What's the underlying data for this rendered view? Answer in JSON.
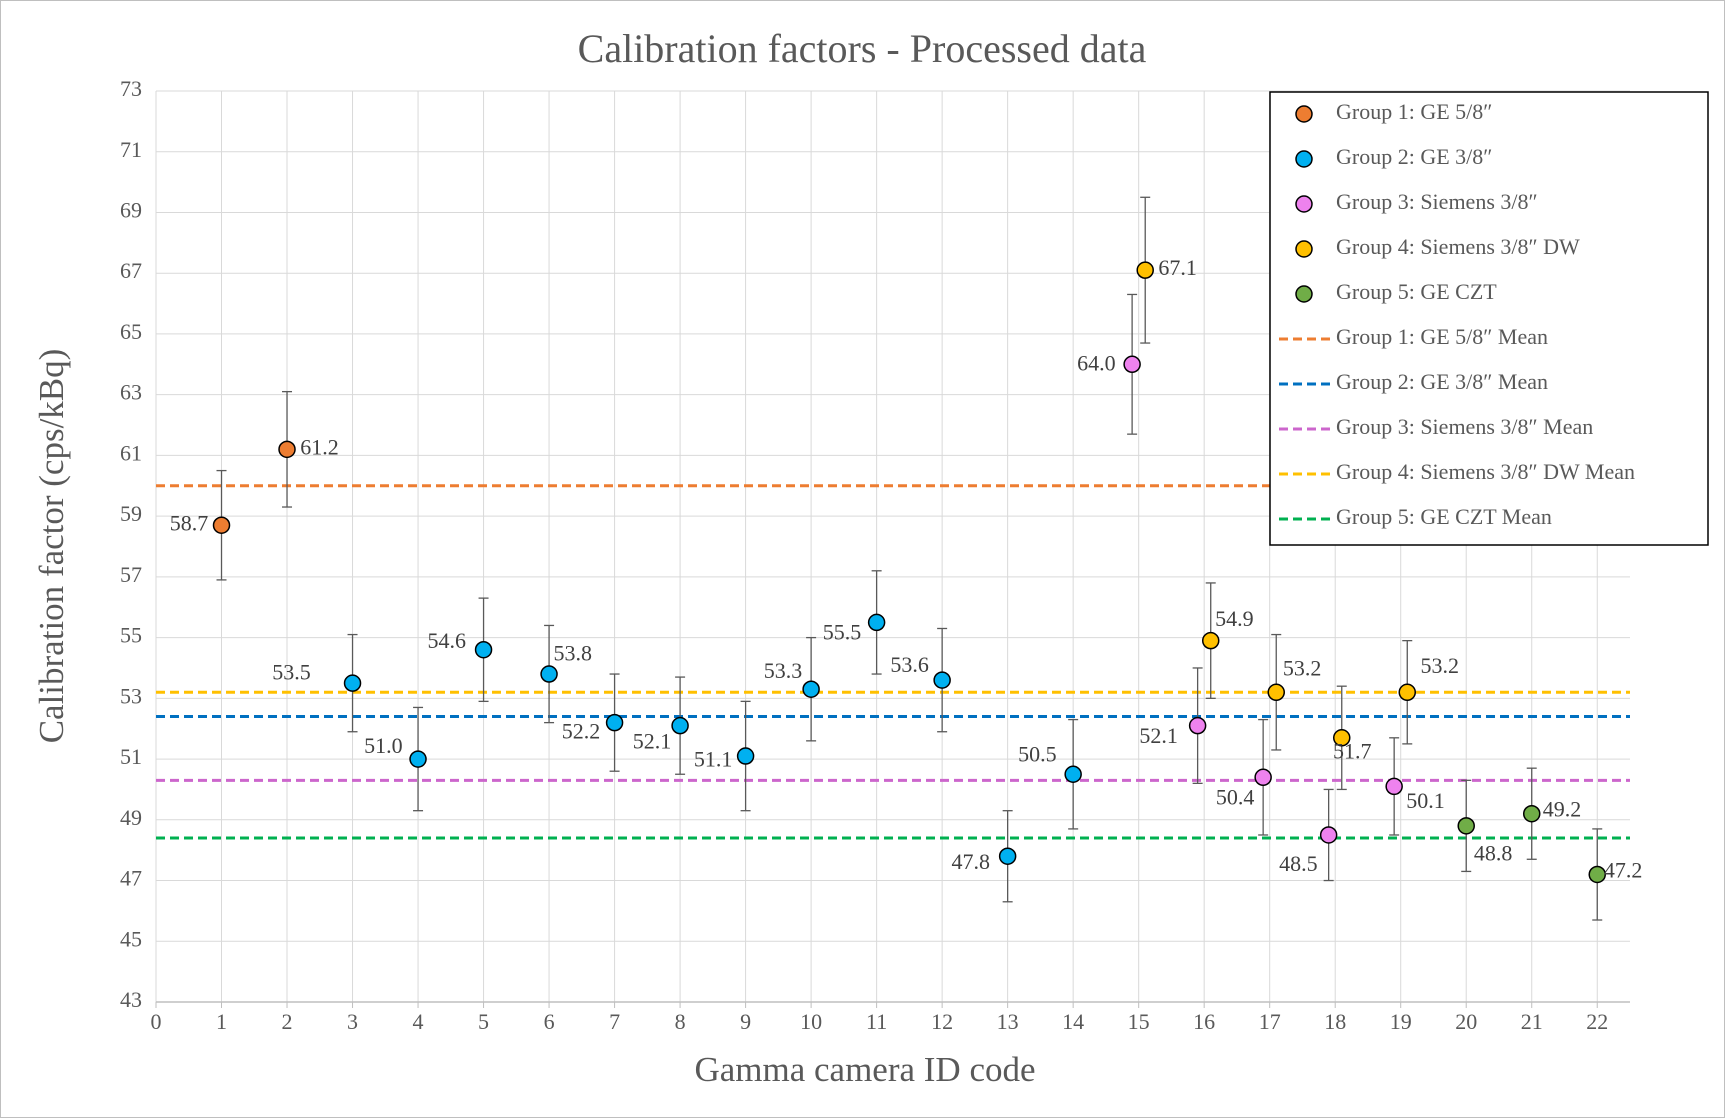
{
  "chart_data": {
    "type": "scatter",
    "title": "Calibration factors - Processed data",
    "x_label": "Gamma camera ID code",
    "y_label": "Calibration factor (cps/kBq)",
    "xlim": [
      0,
      22.5
    ],
    "xticks": [
      0,
      1,
      2,
      3,
      4,
      5,
      6,
      7,
      8,
      9,
      10,
      11,
      12,
      13,
      14,
      15,
      16,
      17,
      18,
      19,
      20,
      21,
      22
    ],
    "ylim": [
      43,
      73
    ],
    "yticks": [
      43,
      45,
      47,
      49,
      51,
      53,
      55,
      57,
      59,
      61,
      63,
      65,
      67,
      69,
      71,
      73
    ],
    "grid": true,
    "legend": "top-right",
    "series": [
      {
        "name": "Group 1: GE 5/8″",
        "color": "#ED7D31",
        "x": [
          1,
          2
        ],
        "values": [
          58.7,
          61.2
        ],
        "errors": [
          1.8,
          1.9
        ]
      },
      {
        "name": "Group 2: GE 3/8″",
        "color": "#00B0F0",
        "x": [
          3,
          4,
          5,
          6,
          7,
          8,
          9,
          10,
          11,
          12,
          13,
          14
        ],
        "values": [
          53.5,
          51.0,
          54.6,
          53.8,
          52.2,
          52.1,
          51.1,
          53.3,
          55.5,
          53.6,
          47.8,
          50.5
        ],
        "value_labels": [
          "53.5",
          "51.0",
          "54.6",
          "53.8",
          "52.2",
          "52.1",
          "51.1",
          "53.3",
          "55.5",
          "53.6",
          "47.8",
          "50.5"
        ],
        "errors": [
          1.6,
          1.7,
          1.7,
          1.6,
          1.6,
          1.6,
          1.8,
          1.7,
          1.7,
          1.7,
          1.5,
          1.8
        ]
      },
      {
        "name": "Group 3: Siemens 3/8″",
        "color": "#EE82EE",
        "x": [
          14.9,
          15.9,
          16.9,
          17.9,
          18.9
        ],
        "values": [
          64.0,
          52.1,
          50.4,
          48.5,
          50.1
        ],
        "value_labels": [
          "64.0",
          "52.1",
          "50.4",
          "48.5",
          "50.1"
        ],
        "errors": [
          2.3,
          1.9,
          1.9,
          1.5,
          1.6
        ]
      },
      {
        "name": "Group 4: Siemens 3/8″ DW",
        "color": "#FFC000",
        "x": [
          15.1,
          16.1,
          17.1,
          18.1,
          19.1
        ],
        "values": [
          67.1,
          54.9,
          53.2,
          51.7,
          53.2
        ],
        "errors": [
          2.4,
          1.9,
          1.9,
          1.7,
          1.7
        ]
      },
      {
        "name": "Group 5: GE CZT",
        "color": "#70AD47",
        "x": [
          20,
          21,
          22
        ],
        "values": [
          48.8,
          49.2,
          47.2
        ],
        "errors": [
          1.5,
          1.5,
          1.5
        ]
      }
    ],
    "mean_lines": [
      {
        "name": "Group 1: GE 5/8″ Mean",
        "color": "#ED7D31",
        "value": 60.0
      },
      {
        "name": "Group 2: GE 3/8″ Mean",
        "color": "#0070C0",
        "value": 52.4
      },
      {
        "name": "Group 3: Siemens 3/8″ Mean",
        "color": "#CC66CC",
        "value": 50.3
      },
      {
        "name": "Group 4: Siemens 3/8″ DW Mean",
        "color": "#FFC000",
        "value": 53.2
      },
      {
        "name": "Group 5: GE CZT Mean",
        "color": "#00B050",
        "value": 48.4
      }
    ]
  }
}
